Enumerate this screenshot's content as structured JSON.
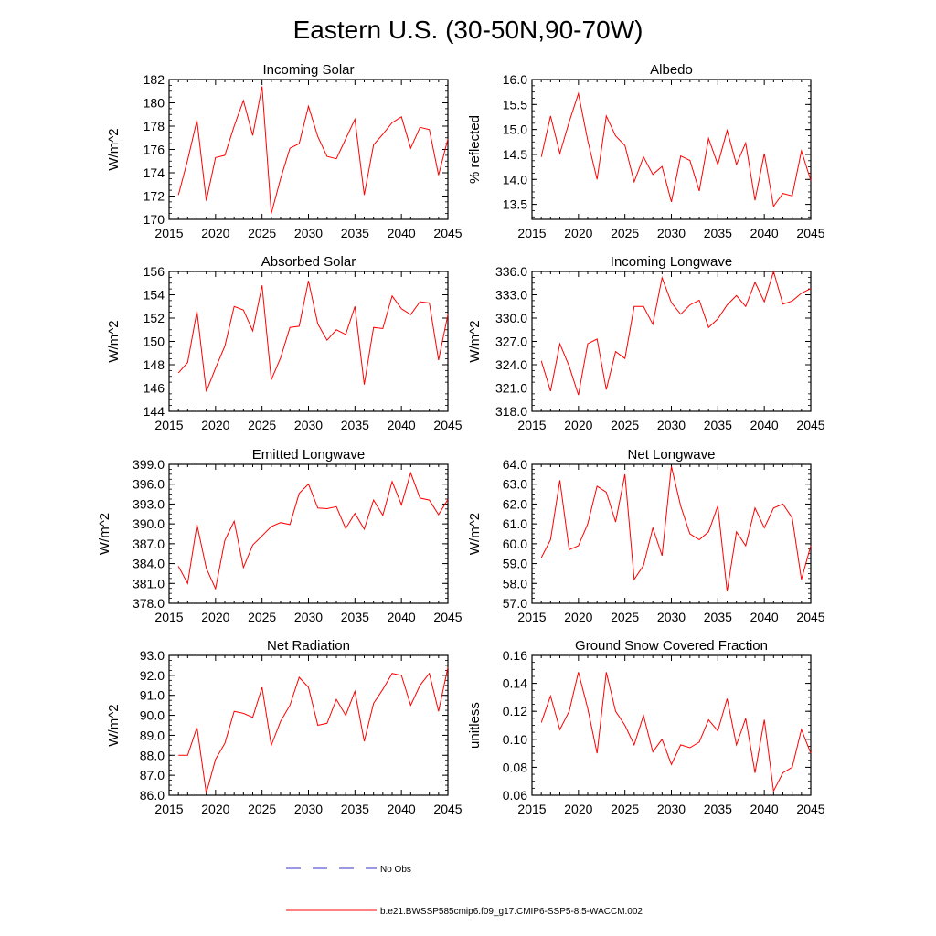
{
  "title": "Eastern U.S. (30-50N,90-70W)",
  "colors": {
    "series": "#ff0000",
    "obs": "#3333cc",
    "axis": "#000000"
  },
  "legend": {
    "obs_label": "No Obs",
    "model_label": "b.e21.BWSSP585cmip6.f09_g17.CMIP6-SSP5-8.5-WACCM.002"
  },
  "chart_data": [
    {
      "type": "line",
      "title": "Incoming Solar",
      "ylabel": "W/m^2",
      "xlabel": "",
      "xlim": [
        2015,
        2045
      ],
      "ylim": [
        170,
        182
      ],
      "yticks": [
        170,
        172,
        174,
        176,
        178,
        180,
        182
      ],
      "ytick_labels": [
        "170",
        "172",
        "174",
        "176",
        "178",
        "180",
        "182"
      ],
      "xticks": [
        2015,
        2020,
        2025,
        2030,
        2035,
        2040,
        2045
      ],
      "x": [
        2016,
        2017,
        2018,
        2019,
        2020,
        2021,
        2022,
        2023,
        2024,
        2025,
        2026,
        2027,
        2028,
        2029,
        2030,
        2031,
        2032,
        2033,
        2034,
        2035,
        2036,
        2037,
        2038,
        2039,
        2040,
        2041,
        2042,
        2043,
        2044,
        2045
      ],
      "series": [
        {
          "name": "b.e21.BWSSP585cmip6.f09_g17.CMIP6-SSP5-8.5-WACCM.002",
          "values": [
            172.1,
            175.1,
            178.5,
            171.6,
            175.3,
            175.5,
            178.0,
            180.2,
            177.2,
            181.4,
            170.5,
            173.5,
            176.1,
            176.5,
            179.7,
            177.1,
            175.4,
            175.2,
            176.9,
            178.6,
            172.1,
            176.4,
            177.3,
            178.3,
            178.8,
            176.1,
            177.9,
            177.7,
            173.8,
            176.9
          ]
        }
      ]
    },
    {
      "type": "line",
      "title": "Albedo",
      "ylabel": "% reflected",
      "xlabel": "",
      "xlim": [
        2015,
        2045
      ],
      "ylim": [
        13.2,
        16.0
      ],
      "yticks": [
        13.5,
        14.0,
        14.5,
        15.0,
        15.5,
        16.0
      ],
      "ytick_labels": [
        "13.5",
        "14.0",
        "14.5",
        "15.0",
        "15.5",
        "16.0"
      ],
      "xticks": [
        2015,
        2020,
        2025,
        2030,
        2035,
        2040,
        2045
      ],
      "x": [
        2016,
        2017,
        2018,
        2019,
        2020,
        2021,
        2022,
        2023,
        2024,
        2025,
        2026,
        2027,
        2028,
        2029,
        2030,
        2031,
        2032,
        2033,
        2034,
        2035,
        2036,
        2037,
        2038,
        2039,
        2040,
        2041,
        2042,
        2043,
        2044,
        2045
      ],
      "series": [
        {
          "name": "b.e21.BWSSP585cmip6.f09_g17.CMIP6-SSP5-8.5-WACCM.002",
          "values": [
            14.45,
            15.27,
            14.52,
            15.15,
            15.72,
            14.78,
            14.0,
            15.27,
            14.87,
            14.68,
            13.95,
            14.45,
            14.1,
            14.26,
            13.55,
            14.47,
            14.38,
            13.77,
            14.82,
            14.3,
            14.98,
            14.3,
            14.73,
            13.58,
            14.52,
            13.46,
            13.72,
            13.67,
            14.57,
            13.98
          ]
        }
      ]
    },
    {
      "type": "line",
      "title": "Absorbed Solar",
      "ylabel": "W/m^2",
      "xlabel": "",
      "xlim": [
        2015,
        2045
      ],
      "ylim": [
        144,
        156
      ],
      "yticks": [
        144,
        146,
        148,
        150,
        152,
        154,
        156
      ],
      "ytick_labels": [
        "144",
        "146",
        "148",
        "150",
        "152",
        "154",
        "156"
      ],
      "xticks": [
        2015,
        2020,
        2025,
        2030,
        2035,
        2040,
        2045
      ],
      "x": [
        2016,
        2017,
        2018,
        2019,
        2020,
        2021,
        2022,
        2023,
        2024,
        2025,
        2026,
        2027,
        2028,
        2029,
        2030,
        2031,
        2032,
        2033,
        2034,
        2035,
        2036,
        2037,
        2038,
        2039,
        2040,
        2041,
        2042,
        2043,
        2044,
        2045
      ],
      "series": [
        {
          "name": "b.e21.BWSSP585cmip6.f09_g17.CMIP6-SSP5-8.5-WACCM.002",
          "values": [
            147.3,
            148.2,
            152.6,
            145.7,
            147.7,
            149.6,
            153.0,
            152.7,
            150.9,
            154.8,
            146.7,
            148.6,
            151.2,
            151.3,
            155.2,
            151.5,
            150.1,
            151.0,
            150.6,
            153.0,
            146.3,
            151.2,
            151.1,
            153.9,
            152.8,
            152.3,
            153.4,
            153.3,
            148.4,
            152.3
          ]
        }
      ]
    },
    {
      "type": "line",
      "title": "Incoming Longwave",
      "ylabel": "W/m^2",
      "xlabel": "",
      "xlim": [
        2015,
        2045
      ],
      "ylim": [
        318.0,
        336.0
      ],
      "yticks": [
        318.0,
        321.0,
        324.0,
        327.0,
        330.0,
        333.0,
        336.0
      ],
      "ytick_labels": [
        "318.0",
        "321.0",
        "324.0",
        "327.0",
        "330.0",
        "333.0",
        "336.0"
      ],
      "xticks": [
        2015,
        2020,
        2025,
        2030,
        2035,
        2040,
        2045
      ],
      "x": [
        2016,
        2017,
        2018,
        2019,
        2020,
        2021,
        2022,
        2023,
        2024,
        2025,
        2026,
        2027,
        2028,
        2029,
        2030,
        2031,
        2032,
        2033,
        2034,
        2035,
        2036,
        2037,
        2038,
        2039,
        2040,
        2041,
        2042,
        2043,
        2044,
        2045
      ],
      "series": [
        {
          "name": "b.e21.BWSSP585cmip6.f09_g17.CMIP6-SSP5-8.5-WACCM.002",
          "values": [
            324.5,
            320.6,
            326.7,
            323.8,
            320.1,
            326.7,
            327.3,
            320.8,
            325.7,
            324.8,
            331.5,
            331.5,
            329.2,
            335.2,
            332.0,
            330.5,
            331.7,
            332.3,
            328.8,
            329.9,
            331.7,
            332.9,
            331.5,
            334.6,
            332.1,
            336.0,
            331.8,
            332.2,
            333.2,
            333.8
          ]
        }
      ]
    },
    {
      "type": "line",
      "title": "Emitted Longwave",
      "ylabel": "W/m^2",
      "xlabel": "",
      "xlim": [
        2015,
        2045
      ],
      "ylim": [
        378.0,
        399.0
      ],
      "yticks": [
        378.0,
        381.0,
        384.0,
        387.0,
        390.0,
        393.0,
        396.0,
        399.0
      ],
      "ytick_labels": [
        "378.0",
        "381.0",
        "384.0",
        "387.0",
        "390.0",
        "393.0",
        "396.0",
        "399.0"
      ],
      "xticks": [
        2015,
        2020,
        2025,
        2030,
        2035,
        2040,
        2045
      ],
      "x": [
        2016,
        2017,
        2018,
        2019,
        2020,
        2021,
        2022,
        2023,
        2024,
        2025,
        2026,
        2027,
        2028,
        2029,
        2030,
        2031,
        2032,
        2033,
        2034,
        2035,
        2036,
        2037,
        2038,
        2039,
        2040,
        2041,
        2042,
        2043,
        2044,
        2045
      ],
      "series": [
        {
          "name": "b.e21.BWSSP585cmip6.f09_g17.CMIP6-SSP5-8.5-WACCM.002",
          "values": [
            383.6,
            381.0,
            389.9,
            383.3,
            380.2,
            387.5,
            390.4,
            383.4,
            386.8,
            388.2,
            389.6,
            390.2,
            389.9,
            394.6,
            396.0,
            392.4,
            392.3,
            392.6,
            389.3,
            391.6,
            389.2,
            393.6,
            391.3,
            396.4,
            392.9,
            397.7,
            393.9,
            393.6,
            391.4,
            393.7
          ]
        }
      ]
    },
    {
      "type": "line",
      "title": "Net Longwave",
      "ylabel": "W/m^2",
      "xlabel": "",
      "xlim": [
        2015,
        2045
      ],
      "ylim": [
        57.0,
        64.0
      ],
      "yticks": [
        57.0,
        58.0,
        59.0,
        60.0,
        61.0,
        62.0,
        63.0,
        64.0
      ],
      "ytick_labels": [
        "57.0",
        "58.0",
        "59.0",
        "60.0",
        "61.0",
        "62.0",
        "63.0",
        "64.0"
      ],
      "xticks": [
        2015,
        2020,
        2025,
        2030,
        2035,
        2040,
        2045
      ],
      "x": [
        2016,
        2017,
        2018,
        2019,
        2020,
        2021,
        2022,
        2023,
        2024,
        2025,
        2026,
        2027,
        2028,
        2029,
        2030,
        2031,
        2032,
        2033,
        2034,
        2035,
        2036,
        2037,
        2038,
        2039,
        2040,
        2041,
        2042,
        2043,
        2044,
        2045
      ],
      "series": [
        {
          "name": "b.e21.BWSSP585cmip6.f09_g17.CMIP6-SSP5-8.5-WACCM.002",
          "values": [
            59.3,
            60.2,
            63.2,
            59.7,
            59.9,
            61.0,
            62.9,
            62.6,
            61.1,
            63.5,
            58.2,
            58.9,
            60.8,
            59.4,
            63.9,
            61.9,
            60.5,
            60.2,
            60.6,
            61.9,
            57.6,
            60.6,
            59.9,
            61.8,
            60.8,
            61.8,
            62.0,
            61.3,
            58.2,
            59.9
          ]
        }
      ]
    },
    {
      "type": "line",
      "title": "Net Radiation",
      "ylabel": "W/m^2",
      "xlabel": "",
      "xlim": [
        2015,
        2045
      ],
      "ylim": [
        86.0,
        93.0
      ],
      "yticks": [
        86.0,
        87.0,
        88.0,
        89.0,
        90.0,
        91.0,
        92.0,
        93.0
      ],
      "ytick_labels": [
        "86.0",
        "87.0",
        "88.0",
        "89.0",
        "90.0",
        "91.0",
        "92.0",
        "93.0"
      ],
      "xticks": [
        2015,
        2020,
        2025,
        2030,
        2035,
        2040,
        2045
      ],
      "x": [
        2016,
        2017,
        2018,
        2019,
        2020,
        2021,
        2022,
        2023,
        2024,
        2025,
        2026,
        2027,
        2028,
        2029,
        2030,
        2031,
        2032,
        2033,
        2034,
        2035,
        2036,
        2037,
        2038,
        2039,
        2040,
        2041,
        2042,
        2043,
        2044,
        2045
      ],
      "series": [
        {
          "name": "b.e21.BWSSP585cmip6.f09_g17.CMIP6-SSP5-8.5-WACCM.002",
          "values": [
            88.0,
            88.0,
            89.4,
            86.1,
            87.8,
            88.6,
            90.2,
            90.1,
            89.9,
            91.4,
            88.5,
            89.7,
            90.5,
            91.9,
            91.4,
            89.5,
            89.6,
            90.8,
            90.0,
            91.2,
            88.7,
            90.6,
            91.3,
            92.1,
            92.0,
            90.5,
            91.5,
            92.1,
            90.2,
            92.4
          ]
        }
      ]
    },
    {
      "type": "line",
      "title": "Ground Snow Covered Fraction",
      "ylabel": "unitless",
      "xlabel": "",
      "xlim": [
        2015,
        2045
      ],
      "ylim": [
        0.06,
        0.16
      ],
      "yticks": [
        0.06,
        0.08,
        0.1,
        0.12,
        0.14,
        0.16
      ],
      "ytick_labels": [
        "0.06",
        "0.08",
        "0.10",
        "0.12",
        "0.14",
        "0.16"
      ],
      "xticks": [
        2015,
        2020,
        2025,
        2030,
        2035,
        2040,
        2045
      ],
      "x": [
        2016,
        2017,
        2018,
        2019,
        2020,
        2021,
        2022,
        2023,
        2024,
        2025,
        2026,
        2027,
        2028,
        2029,
        2030,
        2031,
        2032,
        2033,
        2034,
        2035,
        2036,
        2037,
        2038,
        2039,
        2040,
        2041,
        2042,
        2043,
        2044,
        2045
      ],
      "series": [
        {
          "name": "b.e21.BWSSP585cmip6.f09_g17.CMIP6-SSP5-8.5-WACCM.002",
          "values": [
            0.112,
            0.131,
            0.107,
            0.12,
            0.148,
            0.122,
            0.09,
            0.148,
            0.12,
            0.11,
            0.096,
            0.117,
            0.091,
            0.1,
            0.082,
            0.096,
            0.094,
            0.098,
            0.114,
            0.106,
            0.129,
            0.096,
            0.115,
            0.076,
            0.114,
            0.063,
            0.076,
            0.08,
            0.107,
            0.09
          ]
        }
      ]
    }
  ]
}
